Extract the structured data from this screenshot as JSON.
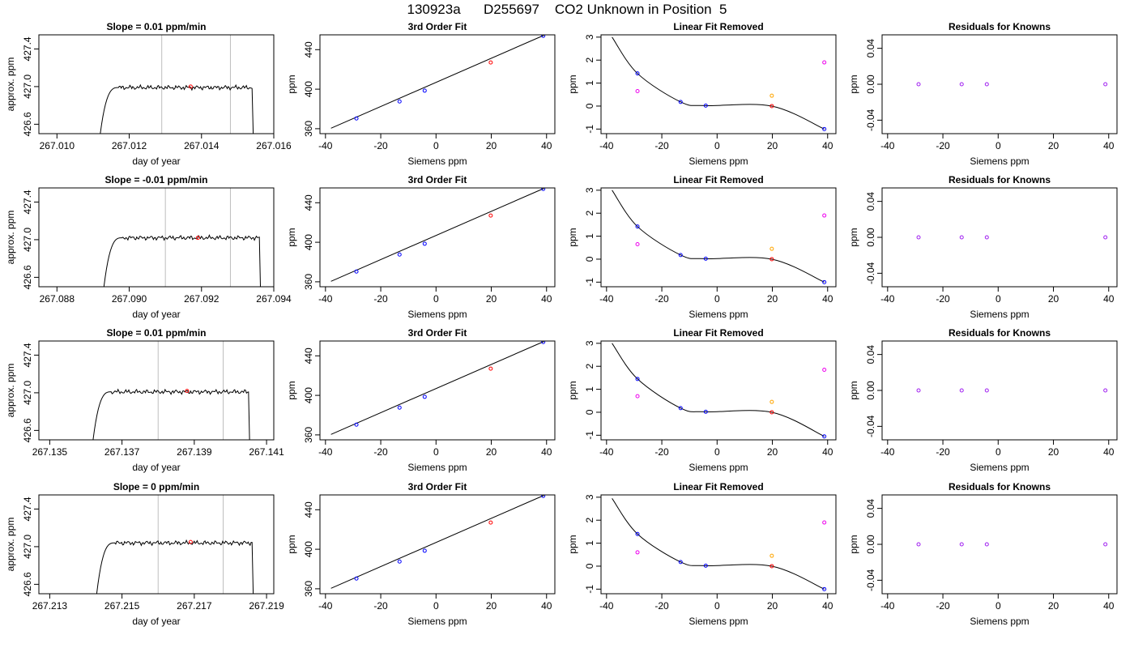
{
  "figure": {
    "title": "130923a      D255697    CO2 Unknown in Position  5"
  },
  "colors": {
    "trace": "#000000",
    "gridline": "#bebebe",
    "known_point": "#0000ff",
    "unknown_point": "#ff0000",
    "residual_point": "#a020f0",
    "orange_point": "#ffa500",
    "magenta_point": "#ee00ee"
  },
  "chart_data": [
    {
      "type": "line",
      "title": "Slope =  0.01  ppm/min",
      "xlabel": "day of year",
      "ylabel": "approx. ppm",
      "xlim": [
        267.0095,
        267.016
      ],
      "ylim": [
        426.5,
        427.55
      ],
      "xticks": [
        "267.010",
        "267.012",
        "267.014",
        "267.016"
      ],
      "xtick_values": [
        267.01,
        267.012,
        267.014,
        267.016
      ],
      "yticks": [
        "426.6",
        "427.0",
        "427.4"
      ],
      "ytick_values": [
        426.6,
        427.0,
        427.4
      ],
      "vlines": [
        267.0129,
        267.0148
      ],
      "trace": {
        "x_start": 267.0112,
        "x_rise_end": 267.0117,
        "x_fall": 267.0154,
        "level": 426.99,
        "bottom": 426.5
      },
      "red_point": {
        "x": 267.0137,
        "y": 427.0
      }
    },
    {
      "type": "line",
      "title": "Slope =  -0.01  ppm/min",
      "xlabel": "day of year",
      "ylabel": "approx. ppm",
      "xlim": [
        267.0875,
        267.094
      ],
      "ylim": [
        426.5,
        427.55
      ],
      "xticks": [
        "267.088",
        "267.090",
        "267.092",
        "267.094"
      ],
      "xtick_values": [
        267.088,
        267.09,
        267.092,
        267.094
      ],
      "yticks": [
        "426.6",
        "427.0",
        "427.4"
      ],
      "ytick_values": [
        426.6,
        427.0,
        427.4
      ],
      "vlines": [
        267.091,
        267.0928
      ],
      "trace": {
        "x_start": 267.0893,
        "x_rise_end": 267.0898,
        "x_fall": 267.0936,
        "level": 427.02,
        "bottom": 426.5
      },
      "red_point": {
        "x": 267.0919,
        "y": 427.02
      }
    },
    {
      "type": "line",
      "title": "Slope =  0.01  ppm/min",
      "xlabel": "day of year",
      "ylabel": "approx. ppm",
      "xlim": [
        267.1347,
        267.1412
      ],
      "ylim": [
        426.5,
        427.55
      ],
      "xticks": [
        "267.135",
        "267.137",
        "267.139",
        "267.141"
      ],
      "xtick_values": [
        267.135,
        267.137,
        267.139,
        267.141
      ],
      "yticks": [
        "426.6",
        "427.0",
        "427.4"
      ],
      "ytick_values": [
        426.6,
        427.0,
        427.4
      ],
      "vlines": [
        267.138,
        267.1398
      ],
      "trace": {
        "x_start": 267.1362,
        "x_rise_end": 267.1367,
        "x_fall": 267.1405,
        "level": 427.01,
        "bottom": 426.5
      },
      "red_point": {
        "x": 267.1388,
        "y": 427.02
      }
    },
    {
      "type": "line",
      "title": "Slope =  0  ppm/min",
      "xlabel": "day of year",
      "ylabel": "approx. ppm",
      "xlim": [
        267.2127,
        267.2192
      ],
      "ylim": [
        426.5,
        427.55
      ],
      "xticks": [
        "267.213",
        "267.215",
        "267.217",
        "267.219"
      ],
      "xtick_values": [
        267.213,
        267.215,
        267.217,
        267.219
      ],
      "yticks": [
        "426.6",
        "427.0",
        "427.4"
      ],
      "ytick_values": [
        426.6,
        427.0,
        427.4
      ],
      "vlines": [
        267.216,
        267.2178
      ],
      "trace": {
        "x_start": 267.2143,
        "x_rise_end": 267.2148,
        "x_fall": 267.2186,
        "level": 427.04,
        "bottom": 426.5
      },
      "red_point": {
        "x": 267.2169,
        "y": 427.05
      }
    },
    {
      "type": "scatter",
      "title": "3rd Order Fit",
      "xlabel": "Siemens ppm",
      "ylabel": "ppm",
      "xlim": [
        -42,
        43
      ],
      "ylim": [
        355,
        455
      ],
      "xticks": [
        "-40",
        "-20",
        "0",
        "20",
        "40"
      ],
      "xtick_values": [
        -40,
        -20,
        0,
        20,
        40
      ],
      "yticks": [
        "360",
        "400",
        "440"
      ],
      "ytick_values": [
        360,
        400,
        440
      ],
      "fit_line": {
        "x": [
          -38,
          39
        ],
        "y": [
          360.5,
          454.5
        ]
      },
      "knowns": {
        "x": [
          -28.8,
          -13.2,
          -4.1,
          38.8
        ],
        "y": [
          370.4,
          387.6,
          398.5,
          454.0
        ]
      },
      "unknown": {
        "x": [
          19.8
        ],
        "y": [
          427.0
        ]
      }
    },
    {
      "type": "scatter",
      "title": "3rd Order Fit",
      "xlabel": "Siemens ppm",
      "ylabel": "ppm",
      "xlim": [
        -42,
        43
      ],
      "ylim": [
        355,
        455
      ],
      "xticks": [
        "-40",
        "-20",
        "0",
        "20",
        "40"
      ],
      "xtick_values": [
        -40,
        -20,
        0,
        20,
        40
      ],
      "yticks": [
        "360",
        "400",
        "440"
      ],
      "ytick_values": [
        360,
        400,
        440
      ],
      "fit_line": {
        "x": [
          -38,
          39
        ],
        "y": [
          360.5,
          454.5
        ]
      },
      "knowns": {
        "x": [
          -28.8,
          -13.2,
          -4.1,
          38.8
        ],
        "y": [
          370.4,
          387.6,
          398.5,
          454.0
        ]
      },
      "unknown": {
        "x": [
          19.8
        ],
        "y": [
          427.0
        ]
      }
    },
    {
      "type": "scatter",
      "title": "3rd Order Fit",
      "xlabel": "Siemens ppm",
      "ylabel": "ppm",
      "xlim": [
        -42,
        43
      ],
      "ylim": [
        355,
        455
      ],
      "xticks": [
        "-40",
        "-20",
        "0",
        "20",
        "40"
      ],
      "xtick_values": [
        -40,
        -20,
        0,
        20,
        40
      ],
      "yticks": [
        "360",
        "400",
        "440"
      ],
      "ytick_values": [
        360,
        400,
        440
      ],
      "fit_line": {
        "x": [
          -38,
          39
        ],
        "y": [
          360.5,
          454.5
        ]
      },
      "knowns": {
        "x": [
          -28.8,
          -13.2,
          -4.1,
          38.8
        ],
        "y": [
          370.4,
          387.6,
          398.5,
          454.0
        ]
      },
      "unknown": {
        "x": [
          19.8
        ],
        "y": [
          427.0
        ]
      }
    },
    {
      "type": "scatter",
      "title": "3rd Order Fit",
      "xlabel": "Siemens ppm",
      "ylabel": "ppm",
      "xlim": [
        -42,
        43
      ],
      "ylim": [
        355,
        455
      ],
      "xticks": [
        "-40",
        "-20",
        "0",
        "20",
        "40"
      ],
      "xtick_values": [
        -40,
        -20,
        0,
        20,
        40
      ],
      "yticks": [
        "360",
        "400",
        "440"
      ],
      "ytick_values": [
        360,
        400,
        440
      ],
      "fit_line": {
        "x": [
          -38,
          39
        ],
        "y": [
          360.5,
          454.5
        ]
      },
      "knowns": {
        "x": [
          -28.8,
          -13.2,
          -4.1,
          38.8
        ],
        "y": [
          370.4,
          387.6,
          398.5,
          454.0
        ]
      },
      "unknown": {
        "x": [
          19.8
        ],
        "y": [
          427.0
        ]
      }
    },
    {
      "type": "scatter",
      "title": "Linear Fit Removed",
      "xlabel": "Siemens ppm",
      "ylabel": "ppm",
      "xlim": [
        -42,
        43
      ],
      "ylim": [
        -1.2,
        3.1
      ],
      "xticks": [
        "-40",
        "-20",
        "0",
        "20",
        "40"
      ],
      "xtick_values": [
        -40,
        -20,
        0,
        20,
        40
      ],
      "yticks": [
        "-1",
        "0",
        "1",
        "2",
        "3"
      ],
      "ytick_values": [
        -1,
        0,
        1,
        2,
        3
      ],
      "curve": {
        "x": [
          -38,
          -28.8,
          -13.2,
          -4.1,
          19.8,
          38.8
        ],
        "y": [
          3.0,
          1.42,
          0.18,
          0.02,
          0.0,
          -1.0
        ]
      },
      "knowns": {
        "x": [
          -28.8,
          -13.2,
          -4.1,
          38.8
        ],
        "y": [
          1.42,
          0.18,
          0.02,
          -1.0
        ]
      },
      "unknown": {
        "x": [
          19.8
        ],
        "y": [
          0.0
        ]
      },
      "magenta": {
        "x": [
          -28.8,
          38.8
        ],
        "y": [
          0.65,
          1.9
        ]
      },
      "orange": {
        "x": [
          19.8
        ],
        "y": [
          0.45
        ]
      }
    },
    {
      "type": "scatter",
      "title": "Linear Fit Removed",
      "xlabel": "Siemens ppm",
      "ylabel": "ppm",
      "xlim": [
        -42,
        43
      ],
      "ylim": [
        -1.2,
        3.1
      ],
      "xticks": [
        "-40",
        "-20",
        "0",
        "20",
        "40"
      ],
      "xtick_values": [
        -40,
        -20,
        0,
        20,
        40
      ],
      "yticks": [
        "-1",
        "0",
        "1",
        "2",
        "3"
      ],
      "ytick_values": [
        -1,
        0,
        1,
        2,
        3
      ],
      "curve": {
        "x": [
          -38,
          -28.8,
          -13.2,
          -4.1,
          19.8,
          38.8
        ],
        "y": [
          3.0,
          1.42,
          0.18,
          0.02,
          0.0,
          -1.0
        ]
      },
      "knowns": {
        "x": [
          -28.8,
          -13.2,
          -4.1,
          38.8
        ],
        "y": [
          1.42,
          0.18,
          0.02,
          -1.0
        ]
      },
      "unknown": {
        "x": [
          19.8
        ],
        "y": [
          0.0
        ]
      },
      "magenta": {
        "x": [
          -28.8,
          38.8
        ],
        "y": [
          0.65,
          1.9
        ]
      },
      "orange": {
        "x": [
          19.8
        ],
        "y": [
          0.45
        ]
      }
    },
    {
      "type": "scatter",
      "title": "Linear Fit Removed",
      "xlabel": "Siemens ppm",
      "ylabel": "ppm",
      "xlim": [
        -42,
        43
      ],
      "ylim": [
        -1.2,
        3.1
      ],
      "xticks": [
        "-40",
        "-20",
        "0",
        "20",
        "40"
      ],
      "xtick_values": [
        -40,
        -20,
        0,
        20,
        40
      ],
      "yticks": [
        "-1",
        "0",
        "1",
        "2",
        "3"
      ],
      "ytick_values": [
        -1,
        0,
        1,
        2,
        3
      ],
      "curve": {
        "x": [
          -38,
          -28.8,
          -13.2,
          -4.1,
          19.8,
          38.8
        ],
        "y": [
          3.0,
          1.45,
          0.18,
          0.02,
          0.0,
          -1.05
        ]
      },
      "knowns": {
        "x": [
          -28.8,
          -13.2,
          -4.1,
          38.8
        ],
        "y": [
          1.45,
          0.18,
          0.02,
          -1.05
        ]
      },
      "unknown": {
        "x": [
          19.8
        ],
        "y": [
          0.0
        ]
      },
      "magenta": {
        "x": [
          -28.8,
          38.8
        ],
        "y": [
          0.7,
          1.85
        ]
      },
      "orange": {
        "x": [
          19.8
        ],
        "y": [
          0.45
        ]
      }
    },
    {
      "type": "scatter",
      "title": "Linear Fit Removed",
      "xlabel": "Siemens ppm",
      "ylabel": "ppm",
      "xlim": [
        -42,
        43
      ],
      "ylim": [
        -1.2,
        3.1
      ],
      "xticks": [
        "-40",
        "-20",
        "0",
        "20",
        "40"
      ],
      "xtick_values": [
        -40,
        -20,
        0,
        20,
        40
      ],
      "yticks": [
        "-1",
        "0",
        "1",
        "2",
        "3"
      ],
      "ytick_values": [
        -1,
        0,
        1,
        2,
        3
      ],
      "curve": {
        "x": [
          -38,
          -28.8,
          -13.2,
          -4.1,
          19.8,
          38.8
        ],
        "y": [
          2.95,
          1.4,
          0.18,
          0.02,
          0.0,
          -1.0
        ]
      },
      "knowns": {
        "x": [
          -28.8,
          -13.2,
          -4.1,
          38.8
        ],
        "y": [
          1.4,
          0.18,
          0.02,
          -1.0
        ]
      },
      "unknown": {
        "x": [
          19.8
        ],
        "y": [
          0.0
        ]
      },
      "magenta": {
        "x": [
          -28.8,
          38.8
        ],
        "y": [
          0.6,
          1.9
        ]
      },
      "orange": {
        "x": [
          19.8
        ],
        "y": [
          0.45
        ]
      }
    },
    {
      "type": "scatter",
      "title": "Residuals for Knowns",
      "xlabel": "Siemens ppm",
      "ylabel": "ppm",
      "xlim": [
        -42,
        43
      ],
      "ylim": [
        -0.055,
        0.055
      ],
      "xticks": [
        "-40",
        "-20",
        "0",
        "20",
        "40"
      ],
      "xtick_values": [
        -40,
        -20,
        0,
        20,
        40
      ],
      "yticks": [
        "-0.04",
        "0.00",
        "0.04"
      ],
      "ytick_values": [
        -0.04,
        0.0,
        0.04
      ],
      "residuals": {
        "x": [
          -28.8,
          -13.2,
          -4.1,
          38.8
        ],
        "y": [
          0,
          0,
          0,
          0
        ]
      }
    },
    {
      "type": "scatter",
      "title": "Residuals for Knowns",
      "xlabel": "Siemens ppm",
      "ylabel": "ppm",
      "xlim": [
        -42,
        43
      ],
      "ylim": [
        -0.055,
        0.055
      ],
      "xticks": [
        "-40",
        "-20",
        "0",
        "20",
        "40"
      ],
      "xtick_values": [
        -40,
        -20,
        0,
        20,
        40
      ],
      "yticks": [
        "-0.04",
        "0.00",
        "0.04"
      ],
      "ytick_values": [
        -0.04,
        0.0,
        0.04
      ],
      "residuals": {
        "x": [
          -28.8,
          -13.2,
          -4.1,
          38.8
        ],
        "y": [
          0,
          0,
          0,
          0
        ]
      }
    },
    {
      "type": "scatter",
      "title": "Residuals for Knowns",
      "xlabel": "Siemens ppm",
      "ylabel": "ppm",
      "xlim": [
        -42,
        43
      ],
      "ylim": [
        -0.055,
        0.055
      ],
      "xticks": [
        "-40",
        "-20",
        "0",
        "20",
        "40"
      ],
      "xtick_values": [
        -40,
        -20,
        0,
        20,
        40
      ],
      "yticks": [
        "-0.04",
        "0.00",
        "0.04"
      ],
      "ytick_values": [
        -0.04,
        0.0,
        0.04
      ],
      "residuals": {
        "x": [
          -28.8,
          -13.2,
          -4.1,
          38.8
        ],
        "y": [
          0,
          0,
          0,
          0
        ]
      }
    },
    {
      "type": "scatter",
      "title": "Residuals for Knowns",
      "xlabel": "Siemens ppm",
      "ylabel": "ppm",
      "xlim": [
        -42,
        43
      ],
      "ylim": [
        -0.055,
        0.055
      ],
      "xticks": [
        "-40",
        "-20",
        "0",
        "20",
        "40"
      ],
      "xtick_values": [
        -40,
        -20,
        0,
        20,
        40
      ],
      "yticks": [
        "-0.04",
        "0.00",
        "0.04"
      ],
      "ytick_values": [
        -0.04,
        0.0,
        0.04
      ],
      "residuals": {
        "x": [
          -28.8,
          -13.2,
          -4.1,
          38.8
        ],
        "y": [
          0,
          0,
          0,
          0
        ]
      }
    }
  ]
}
